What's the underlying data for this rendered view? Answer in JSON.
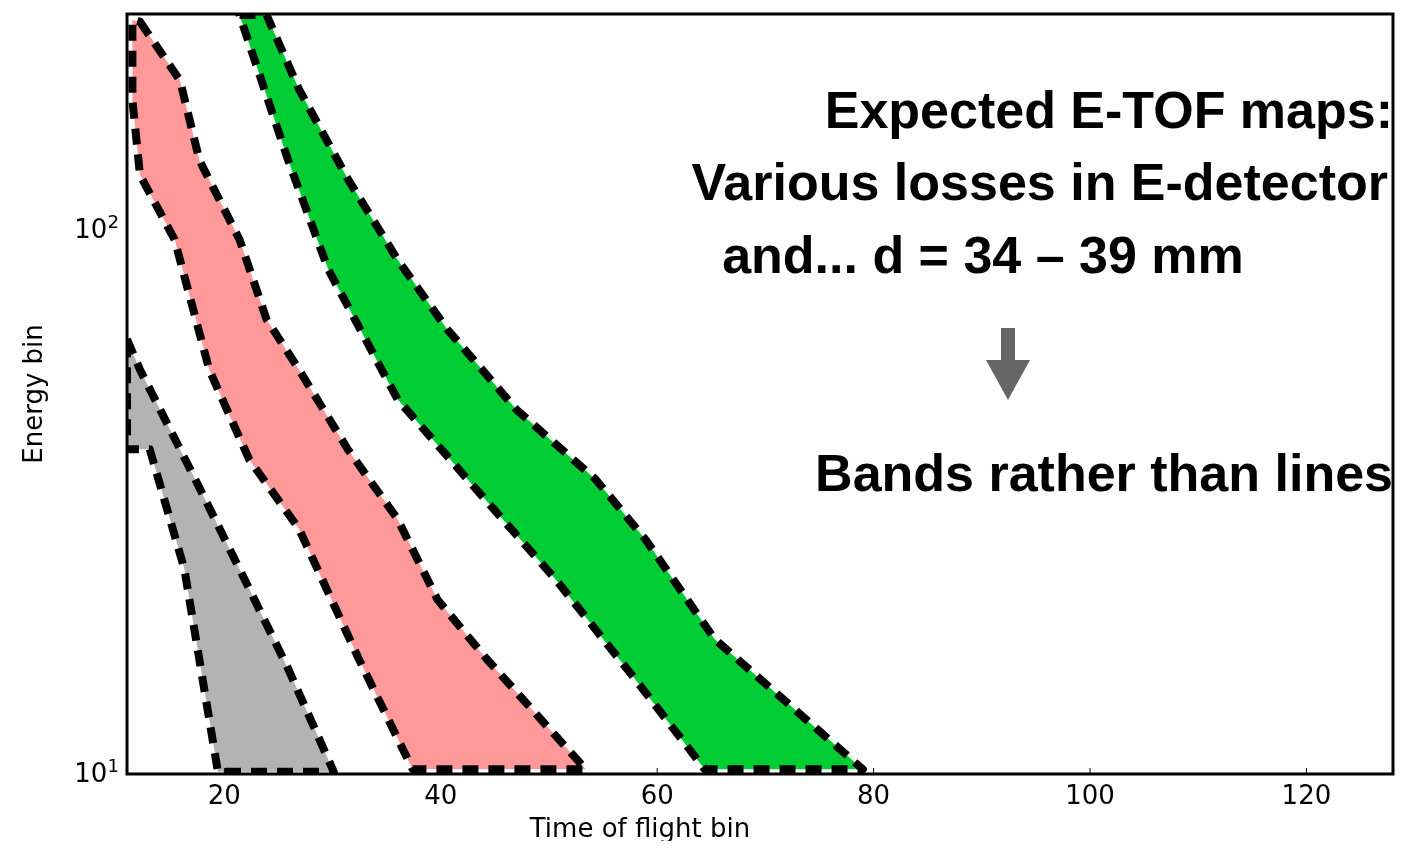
{
  "chart_data": {
    "type": "area",
    "xlabel": "Time of flight bin",
    "ylabel": "Energy bin",
    "log": "y",
    "xlim": [
      11,
      128
    ],
    "ylim": [
      10,
      249
    ],
    "xticks": [
      20,
      40,
      60,
      80,
      100,
      120
    ],
    "yticks": [
      {
        "value": 10,
        "label": "10$^{1}$"
      },
      {
        "value": 100,
        "label": "10$^{2}$"
      }
    ],
    "grid": false,
    "line_style": "dashed",
    "annotations": [
      "Expected E-TOF maps:",
      "Various losses in E-detector",
      "and... d = 34 – 39 mm",
      "Bands rather than lines"
    ],
    "series": [
      {
        "color": "#b3b3b3",
        "x": [
          11.0,
          12.2,
          17.3,
          21.4,
          25.9,
          30.1,
          19.4,
          16.3,
          13.1,
          11.0
        ],
        "values": [
          62.9,
          55.3,
          34.8,
          23.8,
          15.6,
          10.1,
          10.1,
          23.8,
          39.5,
          39.5
        ]
      },
      {
        "color": "#ff9999",
        "x": [
          12.2,
          15.9,
          17.7,
          21.4,
          23.9,
          26.9,
          31.4,
          36.0,
          39.7,
          44.2,
          53.4,
          37.4,
          32.4,
          26.9,
          22.3,
          18.6,
          15.4,
          12.2,
          11.5,
          11.5
        ],
        "values": [
          241,
          188,
          134,
          95.9,
          68.4,
          55.3,
          39.5,
          29.4,
          20.9,
          16.3,
          10.2,
          10.2,
          16.3,
          28.2,
          37.8,
          55.3,
          95.9,
          126,
          173,
          243
        ]
      },
      {
        "color": "#00cc33",
        "x": [
          21.4,
          23.9,
          26.9,
          31.4,
          36.0,
          40.6,
          47.0,
          54.3,
          58.9,
          65.3,
          72.6,
          79.0,
          64.4,
          58.0,
          50.6,
          43.3,
          36.0,
          29.6,
          25.9
        ],
        "values": [
          248,
          248,
          181,
          124,
          88.1,
          65.6,
          46.7,
          34.8,
          27.0,
          17.7,
          13.2,
          10.2,
          10.2,
          14.9,
          22.8,
          33.3,
          48.8,
          84.5,
          134
        ]
      }
    ]
  }
}
